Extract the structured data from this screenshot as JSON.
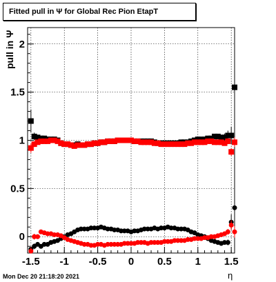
{
  "title": "Fitted pull in  Ψ  for Global Rec Pion EtapT",
  "ylabel": "pull in  Ψ",
  "xlabel": "η",
  "datestamp": "Mon Dec 20 21:18:20 2021",
  "chart_data": {
    "type": "scatter",
    "title": "Fitted pull in  Ψ  for Global Rec Pion EtapT",
    "xlabel": "η",
    "ylabel": "pull in  Ψ",
    "xlim": [
      -1.55,
      1.55
    ],
    "ylim": [
      -0.17,
      2.17
    ],
    "xticks": [
      "-1.5",
      "-1",
      "-0.5",
      "0",
      "0.5",
      "1",
      "1.5"
    ],
    "yticks": [
      "0",
      "0.5",
      "1",
      "1.5",
      "2"
    ],
    "grid": true,
    "colors": {
      "series1": "#000000",
      "series2": "#ff0000"
    },
    "series": [
      {
        "color": "#000000",
        "description": "sigma pull (black squares)",
        "x": [
          -1.5,
          -1.45,
          -1.4,
          -1.35,
          -1.3,
          -1.25,
          -1.2,
          -1.15,
          -1.1,
          -1.05,
          -1.0,
          -0.95,
          -0.9,
          -0.85,
          -0.8,
          -0.75,
          -0.7,
          -0.65,
          -0.6,
          -0.55,
          -0.5,
          -0.45,
          -0.4,
          -0.35,
          -0.3,
          -0.25,
          -0.2,
          -0.15,
          -0.1,
          -0.05,
          0.0,
          0.05,
          0.1,
          0.15,
          0.2,
          0.25,
          0.3,
          0.35,
          0.4,
          0.45,
          0.5,
          0.55,
          0.6,
          0.65,
          0.7,
          0.75,
          0.8,
          0.85,
          0.9,
          0.95,
          1.0,
          1.05,
          1.1,
          1.15,
          1.2,
          1.25,
          1.3,
          1.35,
          1.4,
          1.45,
          1.5,
          1.55
        ],
        "y": [
          1.2,
          1.04,
          1.03,
          1.02,
          1.02,
          1.01,
          1.01,
          1.01,
          1.0,
          0.97,
          0.96,
          0.96,
          0.95,
          0.95,
          0.96,
          0.95,
          0.95,
          0.96,
          0.96,
          0.97,
          0.97,
          0.98,
          0.98,
          0.99,
          0.99,
          0.99,
          1.0,
          1.0,
          1.0,
          1.0,
          1.0,
          0.99,
          0.99,
          0.99,
          0.99,
          0.99,
          0.99,
          0.98,
          0.97,
          0.97,
          0.97,
          0.97,
          0.97,
          0.97,
          0.97,
          0.98,
          0.98,
          0.98,
          0.99,
          1.0,
          1.01,
          1.01,
          1.01,
          1.02,
          1.02,
          1.04,
          1.04,
          1.03,
          1.03,
          1.05,
          1.05,
          1.55
        ],
        "yerr": [
          0.12,
          0.04,
          0.02,
          0.01,
          0.01,
          0.01,
          0.01,
          0.01,
          0.01,
          0.01,
          0.01,
          0.01,
          0.01,
          0.01,
          0.01,
          0.01,
          0.01,
          0.01,
          0.01,
          0.01,
          0.01,
          0.01,
          0.01,
          0.01,
          0.01,
          0.01,
          0.01,
          0.01,
          0.01,
          0.01,
          0.01,
          0.01,
          0.01,
          0.01,
          0.01,
          0.01,
          0.01,
          0.01,
          0.01,
          0.01,
          0.01,
          0.01,
          0.01,
          0.01,
          0.01,
          0.01,
          0.01,
          0.01,
          0.01,
          0.01,
          0.01,
          0.01,
          0.01,
          0.01,
          0.01,
          0.01,
          0.02,
          0.02,
          0.04,
          0.05,
          0.09,
          0.45
        ]
      },
      {
        "color": "#ff0000",
        "description": "sigma pull (red squares)",
        "x": [
          -1.5,
          -1.45,
          -1.4,
          -1.35,
          -1.3,
          -1.25,
          -1.2,
          -1.15,
          -1.1,
          -1.05,
          -1.0,
          -0.95,
          -0.9,
          -0.85,
          -0.8,
          -0.75,
          -0.7,
          -0.65,
          -0.6,
          -0.55,
          -0.5,
          -0.45,
          -0.4,
          -0.35,
          -0.3,
          -0.25,
          -0.2,
          -0.15,
          -0.1,
          -0.05,
          0.0,
          0.05,
          0.1,
          0.15,
          0.2,
          0.25,
          0.3,
          0.35,
          0.4,
          0.45,
          0.5,
          0.55,
          0.6,
          0.65,
          0.7,
          0.75,
          0.8,
          0.85,
          0.9,
          0.95,
          1.0,
          1.05,
          1.1,
          1.15,
          1.2,
          1.25,
          1.3,
          1.35,
          1.4,
          1.45,
          1.5,
          1.55
        ],
        "y": [
          0.92,
          0.96,
          0.98,
          0.99,
          0.99,
          0.99,
          1.0,
          1.0,
          0.99,
          0.97,
          0.96,
          0.96,
          0.95,
          0.94,
          0.95,
          0.95,
          0.95,
          0.96,
          0.96,
          0.97,
          0.97,
          0.98,
          0.98,
          0.99,
          0.99,
          0.99,
          1.0,
          1.0,
          1.0,
          1.0,
          1.0,
          0.99,
          0.99,
          0.98,
          0.98,
          0.98,
          0.98,
          0.97,
          0.97,
          0.96,
          0.96,
          0.96,
          0.96,
          0.96,
          0.96,
          0.96,
          0.96,
          0.97,
          0.97,
          0.98,
          0.98,
          0.98,
          0.98,
          0.99,
          0.99,
          0.98,
          0.98,
          0.98,
          0.97,
          0.99,
          0.88,
          0.98
        ],
        "yerr": [
          0.05,
          0.03,
          0.02,
          0.01,
          0.01,
          0.01,
          0.01,
          0.01,
          0.01,
          0.01,
          0.01,
          0.01,
          0.01,
          0.01,
          0.01,
          0.01,
          0.01,
          0.01,
          0.01,
          0.01,
          0.01,
          0.01,
          0.01,
          0.01,
          0.01,
          0.01,
          0.01,
          0.01,
          0.01,
          0.01,
          0.01,
          0.01,
          0.01,
          0.01,
          0.01,
          0.01,
          0.01,
          0.01,
          0.01,
          0.01,
          0.01,
          0.01,
          0.01,
          0.01,
          0.01,
          0.01,
          0.01,
          0.01,
          0.01,
          0.01,
          0.01,
          0.01,
          0.01,
          0.01,
          0.01,
          0.01,
          0.01,
          0.01,
          0.02,
          0.03,
          0.04,
          0.05
        ]
      },
      {
        "color": "#000000",
        "description": "mean pull (black dots)",
        "x": [
          -1.5,
          -1.45,
          -1.4,
          -1.35,
          -1.3,
          -1.25,
          -1.2,
          -1.15,
          -1.1,
          -1.05,
          -1.0,
          -0.95,
          -0.9,
          -0.85,
          -0.8,
          -0.75,
          -0.7,
          -0.65,
          -0.6,
          -0.55,
          -0.5,
          -0.45,
          -0.4,
          -0.35,
          -0.3,
          -0.25,
          -0.2,
          -0.15,
          -0.1,
          -0.05,
          0.0,
          0.05,
          0.1,
          0.15,
          0.2,
          0.25,
          0.3,
          0.35,
          0.4,
          0.45,
          0.5,
          0.55,
          0.6,
          0.65,
          0.7,
          0.75,
          0.8,
          0.85,
          0.9,
          0.95,
          1.0,
          1.05,
          1.1,
          1.15,
          1.2,
          1.25,
          1.3,
          1.35,
          1.4,
          1.45,
          1.5,
          1.55
        ],
        "y": [
          -0.13,
          -0.1,
          -0.08,
          -0.1,
          -0.08,
          -0.08,
          -0.06,
          -0.05,
          -0.04,
          -0.02,
          0.0,
          0.02,
          0.03,
          0.05,
          0.07,
          0.08,
          0.08,
          0.08,
          0.09,
          0.09,
          0.09,
          0.1,
          0.09,
          0.08,
          0.08,
          0.07,
          0.07,
          0.06,
          0.06,
          0.06,
          0.05,
          0.06,
          0.06,
          0.07,
          0.08,
          0.08,
          0.08,
          0.09,
          0.08,
          0.09,
          0.09,
          0.1,
          0.09,
          0.09,
          0.08,
          0.08,
          0.08,
          0.07,
          0.05,
          0.04,
          0.02,
          0.01,
          0.0,
          -0.02,
          -0.04,
          -0.05,
          -0.06,
          -0.07,
          -0.06,
          -0.06,
          0.15,
          0.3
        ],
        "yerr": [
          0.03,
          0.03,
          0.02,
          0.02,
          0.01,
          0.01,
          0.01,
          0.01,
          0.01,
          0.01,
          0.01,
          0.01,
          0.01,
          0.01,
          0.01,
          0.01,
          0.01,
          0.01,
          0.01,
          0.01,
          0.01,
          0.01,
          0.01,
          0.01,
          0.01,
          0.01,
          0.01,
          0.01,
          0.01,
          0.01,
          0.01,
          0.01,
          0.01,
          0.01,
          0.01,
          0.01,
          0.01,
          0.01,
          0.01,
          0.01,
          0.01,
          0.01,
          0.01,
          0.01,
          0.01,
          0.01,
          0.01,
          0.01,
          0.01,
          0.01,
          0.01,
          0.01,
          0.01,
          0.01,
          0.01,
          0.01,
          0.01,
          0.01,
          0.02,
          0.03,
          0.08,
          0.35
        ]
      },
      {
        "color": "#ff0000",
        "description": "mean pull (red dots)",
        "x": [
          -1.5,
          -1.45,
          -1.4,
          -1.35,
          -1.3,
          -1.25,
          -1.2,
          -1.15,
          -1.1,
          -1.05,
          -1.0,
          -0.95,
          -0.9,
          -0.85,
          -0.8,
          -0.75,
          -0.7,
          -0.65,
          -0.6,
          -0.55,
          -0.5,
          -0.45,
          -0.4,
          -0.35,
          -0.3,
          -0.25,
          -0.2,
          -0.15,
          -0.1,
          -0.05,
          0.0,
          0.05,
          0.1,
          0.15,
          0.2,
          0.25,
          0.3,
          0.35,
          0.4,
          0.45,
          0.5,
          0.55,
          0.6,
          0.65,
          0.7,
          0.75,
          0.8,
          0.85,
          0.9,
          0.95,
          1.0,
          1.05,
          1.1,
          1.15,
          1.2,
          1.25,
          1.3,
          1.35,
          1.4,
          1.45,
          1.5,
          1.55
        ],
        "y": [
          -0.15,
          0.0,
          0.0,
          0.05,
          0.04,
          0.03,
          0.03,
          0.02,
          0.02,
          0.01,
          -0.01,
          -0.03,
          -0.04,
          -0.05,
          -0.06,
          -0.07,
          -0.08,
          -0.08,
          -0.09,
          -0.09,
          -0.08,
          -0.08,
          -0.09,
          -0.08,
          -0.08,
          -0.08,
          -0.08,
          -0.08,
          -0.07,
          -0.07,
          -0.07,
          -0.07,
          -0.06,
          -0.06,
          -0.06,
          -0.07,
          -0.06,
          -0.06,
          -0.06,
          -0.06,
          -0.05,
          -0.05,
          -0.05,
          -0.04,
          -0.04,
          -0.04,
          -0.04,
          -0.03,
          -0.03,
          -0.02,
          -0.02,
          -0.02,
          -0.01,
          -0.01,
          0.0,
          0.0,
          0.01,
          0.02,
          0.03,
          0.05,
          0.12,
          0.05
        ],
        "yerr": [
          0.04,
          0.03,
          0.02,
          0.02,
          0.01,
          0.01,
          0.01,
          0.01,
          0.01,
          0.01,
          0.01,
          0.01,
          0.01,
          0.01,
          0.01,
          0.01,
          0.01,
          0.01,
          0.01,
          0.01,
          0.01,
          0.01,
          0.01,
          0.01,
          0.01,
          0.01,
          0.01,
          0.01,
          0.01,
          0.01,
          0.01,
          0.01,
          0.01,
          0.01,
          0.01,
          0.01,
          0.01,
          0.01,
          0.01,
          0.01,
          0.01,
          0.01,
          0.01,
          0.01,
          0.01,
          0.01,
          0.01,
          0.01,
          0.01,
          0.01,
          0.01,
          0.01,
          0.01,
          0.01,
          0.01,
          0.01,
          0.01,
          0.01,
          0.02,
          0.03,
          0.05,
          0.06
        ]
      }
    ]
  }
}
